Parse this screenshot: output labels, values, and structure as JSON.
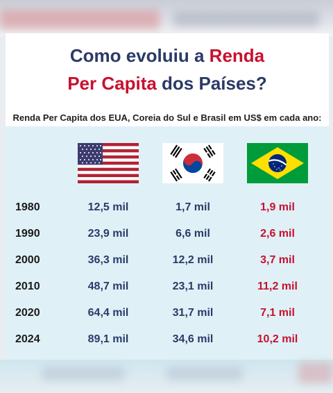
{
  "title": {
    "line1_part1": "Como evoluiu a ",
    "line1_part2": "Renda",
    "line2_part1": "Per Capita",
    "line2_part2": " dos Países?"
  },
  "subtitle": "Renda Per Capita dos EUA, Coreia do Sul e Brasil em US$ em cada ano:",
  "colors": {
    "title_blue": "#2b3a67",
    "accent_red": "#c8102e",
    "panel_bg": "#dff1f7"
  },
  "flags": [
    "usa-flag",
    "south-korea-flag",
    "brazil-flag"
  ],
  "rows": [
    {
      "year": "1980",
      "us": "12,5 mil",
      "kr": "1,7 mil",
      "br": "1,9 mil"
    },
    {
      "year": "1990",
      "us": "23,9 mil",
      "kr": "6,6 mil",
      "br": "2,6 mil"
    },
    {
      "year": "2000",
      "us": "36,3 mil",
      "kr": "12,2 mil",
      "br": "3,7 mil"
    },
    {
      "year": "2010",
      "us": "48,7 mil",
      "kr": "23,1 mil",
      "br": "11,2 mil"
    },
    {
      "year": "2020",
      "us": "64,4 mil",
      "kr": "31,7 mil",
      "br": "7,1 mil"
    },
    {
      "year": "2024",
      "us": "89,1 mil",
      "kr": "34,6 mil",
      "br": "10,2 mil"
    }
  ]
}
